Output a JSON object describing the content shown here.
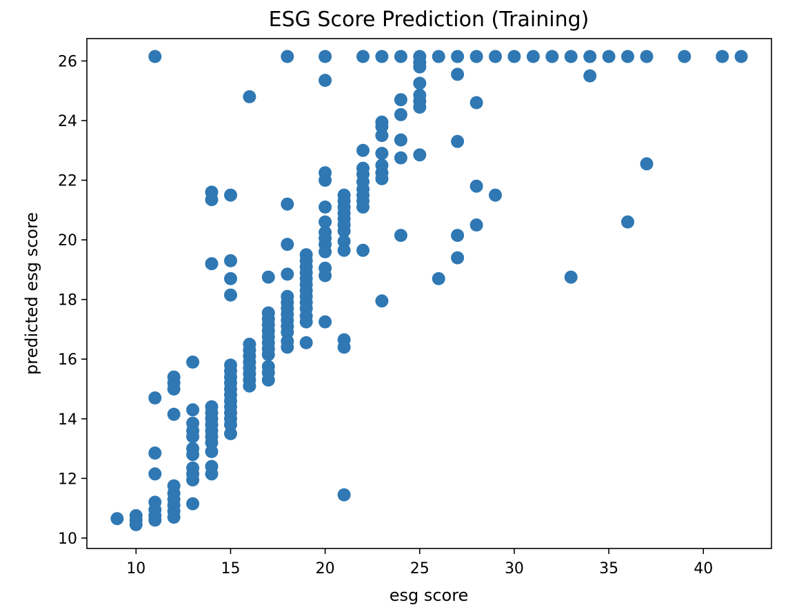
{
  "chart_data": {
    "type": "scatter",
    "title": "ESG Score Prediction (Training)",
    "xlabel": "esg score",
    "ylabel": "predicted esg score",
    "xlim": [
      7.4,
      43.6
    ],
    "ylim": [
      9.65,
      26.75
    ],
    "xticks": [
      10,
      15,
      20,
      25,
      30,
      35,
      40
    ],
    "yticks": [
      10,
      12,
      14,
      16,
      18,
      20,
      22,
      24,
      26
    ],
    "grid": false,
    "legend": "none",
    "marker_color": "#2f78b3",
    "points": [
      [
        11,
        26.15
      ],
      [
        18,
        26.15
      ],
      [
        20,
        26.15
      ],
      [
        22,
        26.15
      ],
      [
        23,
        26.15
      ],
      [
        24,
        26.15
      ],
      [
        25,
        26.15
      ],
      [
        26,
        26.15
      ],
      [
        27,
        26.15
      ],
      [
        28,
        26.15
      ],
      [
        29,
        26.15
      ],
      [
        30,
        26.15
      ],
      [
        31,
        26.15
      ],
      [
        32,
        26.15
      ],
      [
        33,
        26.15
      ],
      [
        34,
        26.15
      ],
      [
        35,
        26.15
      ],
      [
        36,
        26.15
      ],
      [
        37,
        26.15
      ],
      [
        39,
        26.15
      ],
      [
        41,
        26.15
      ],
      [
        42,
        26.15
      ],
      [
        20,
        25.35
      ],
      [
        16,
        24.8
      ],
      [
        34,
        25.5
      ],
      [
        27,
        25.55
      ],
      [
        28,
        24.6
      ],
      [
        27,
        23.3
      ],
      [
        37,
        22.55
      ],
      [
        28,
        21.8
      ],
      [
        29,
        21.5
      ],
      [
        28,
        20.5
      ],
      [
        27,
        20.15
      ],
      [
        27,
        19.4
      ],
      [
        26,
        18.7
      ],
      [
        36,
        20.6
      ],
      [
        33,
        18.75
      ],
      [
        24,
        20.15
      ],
      [
        23,
        17.95
      ],
      [
        22,
        19.65
      ],
      [
        21,
        11.45
      ],
      [
        20,
        17.25
      ],
      [
        19,
        16.55
      ],
      [
        25,
        25.95
      ],
      [
        25,
        25.8
      ],
      [
        25,
        25.25
      ],
      [
        25,
        24.85
      ],
      [
        25,
        24.65
      ],
      [
        25,
        24.45
      ],
      [
        25,
        22.85
      ],
      [
        24,
        24.7
      ],
      [
        24,
        24.2
      ],
      [
        24,
        23.35
      ],
      [
        24,
        22.75
      ],
      [
        23,
        23.95
      ],
      [
        23,
        23.8
      ],
      [
        23,
        23.5
      ],
      [
        23,
        22.9
      ],
      [
        23,
        22.5
      ],
      [
        23,
        22.25
      ],
      [
        23,
        22.05
      ],
      [
        22,
        23.0
      ],
      [
        22,
        22.4
      ],
      [
        22,
        22.2
      ],
      [
        22,
        21.95
      ],
      [
        22,
        21.7
      ],
      [
        22,
        21.5
      ],
      [
        22,
        21.3
      ],
      [
        22,
        21.1
      ],
      [
        21,
        21.5
      ],
      [
        21,
        21.3
      ],
      [
        21,
        21.1
      ],
      [
        21,
        20.9
      ],
      [
        21,
        20.7
      ],
      [
        21,
        20.5
      ],
      [
        21,
        20.3
      ],
      [
        21,
        19.95
      ],
      [
        21,
        19.65
      ],
      [
        21,
        16.65
      ],
      [
        21,
        16.4
      ],
      [
        20,
        22.25
      ],
      [
        20,
        22.0
      ],
      [
        20,
        21.1
      ],
      [
        20,
        20.6
      ],
      [
        20,
        20.25
      ],
      [
        20,
        20.05
      ],
      [
        20,
        19.85
      ],
      [
        20,
        19.6
      ],
      [
        20,
        19.05
      ],
      [
        20,
        18.8
      ],
      [
        19,
        19.5
      ],
      [
        19,
        19.3
      ],
      [
        19,
        19.1
      ],
      [
        19,
        18.9
      ],
      [
        19,
        18.7
      ],
      [
        19,
        18.5
      ],
      [
        19,
        18.3
      ],
      [
        19,
        18.1
      ],
      [
        19,
        17.9
      ],
      [
        19,
        17.7
      ],
      [
        19,
        17.45
      ],
      [
        19,
        17.25
      ],
      [
        18,
        21.2
      ],
      [
        18,
        19.85
      ],
      [
        18,
        18.85
      ],
      [
        18,
        18.1
      ],
      [
        18,
        17.9
      ],
      [
        18,
        17.7
      ],
      [
        18,
        17.5
      ],
      [
        18,
        17.3
      ],
      [
        18,
        17.1
      ],
      [
        18,
        16.9
      ],
      [
        18,
        16.6
      ],
      [
        18,
        16.4
      ],
      [
        17,
        18.75
      ],
      [
        17,
        17.55
      ],
      [
        17,
        17.35
      ],
      [
        17,
        17.15
      ],
      [
        17,
        16.95
      ],
      [
        17,
        16.75
      ],
      [
        17,
        16.55
      ],
      [
        17,
        16.35
      ],
      [
        17,
        16.15
      ],
      [
        17,
        15.75
      ],
      [
        17,
        15.55
      ],
      [
        17,
        15.3
      ],
      [
        16,
        16.5
      ],
      [
        16,
        16.3
      ],
      [
        16,
        16.1
      ],
      [
        16,
        15.9
      ],
      [
        16,
        15.7
      ],
      [
        16,
        15.5
      ],
      [
        16,
        15.3
      ],
      [
        16,
        15.1
      ],
      [
        15,
        21.5
      ],
      [
        15,
        19.3
      ],
      [
        15,
        18.7
      ],
      [
        15,
        18.15
      ],
      [
        15,
        15.8
      ],
      [
        15,
        15.6
      ],
      [
        15,
        15.4
      ],
      [
        15,
        15.2
      ],
      [
        15,
        15.0
      ],
      [
        15,
        14.8
      ],
      [
        15,
        14.6
      ],
      [
        15,
        14.4
      ],
      [
        15,
        14.2
      ],
      [
        15,
        14.0
      ],
      [
        15,
        13.8
      ],
      [
        15,
        13.5
      ],
      [
        14,
        21.6
      ],
      [
        14,
        21.35
      ],
      [
        14,
        19.2
      ],
      [
        14,
        14.4
      ],
      [
        14,
        14.2
      ],
      [
        14,
        14.0
      ],
      [
        14,
        13.8
      ],
      [
        14,
        13.6
      ],
      [
        14,
        13.4
      ],
      [
        14,
        13.2
      ],
      [
        14,
        12.9
      ],
      [
        14,
        12.4
      ],
      [
        14,
        12.15
      ],
      [
        13,
        15.9
      ],
      [
        13,
        14.3
      ],
      [
        13,
        13.85
      ],
      [
        13,
        13.6
      ],
      [
        13,
        13.4
      ],
      [
        13,
        13.0
      ],
      [
        13,
        12.8
      ],
      [
        13,
        12.35
      ],
      [
        13,
        12.15
      ],
      [
        13,
        11.95
      ],
      [
        13,
        11.15
      ],
      [
        12,
        15.4
      ],
      [
        12,
        15.2
      ],
      [
        12,
        15.0
      ],
      [
        12,
        14.15
      ],
      [
        12,
        11.75
      ],
      [
        12,
        11.5
      ],
      [
        12,
        11.3
      ],
      [
        12,
        11.1
      ],
      [
        12,
        10.9
      ],
      [
        12,
        10.7
      ],
      [
        11,
        14.7
      ],
      [
        11,
        12.85
      ],
      [
        11,
        12.15
      ],
      [
        11,
        11.2
      ],
      [
        11,
        10.95
      ],
      [
        11,
        10.75
      ],
      [
        11,
        10.6
      ],
      [
        10,
        10.75
      ],
      [
        10,
        10.6
      ],
      [
        10,
        10.45
      ],
      [
        9,
        10.65
      ]
    ]
  }
}
